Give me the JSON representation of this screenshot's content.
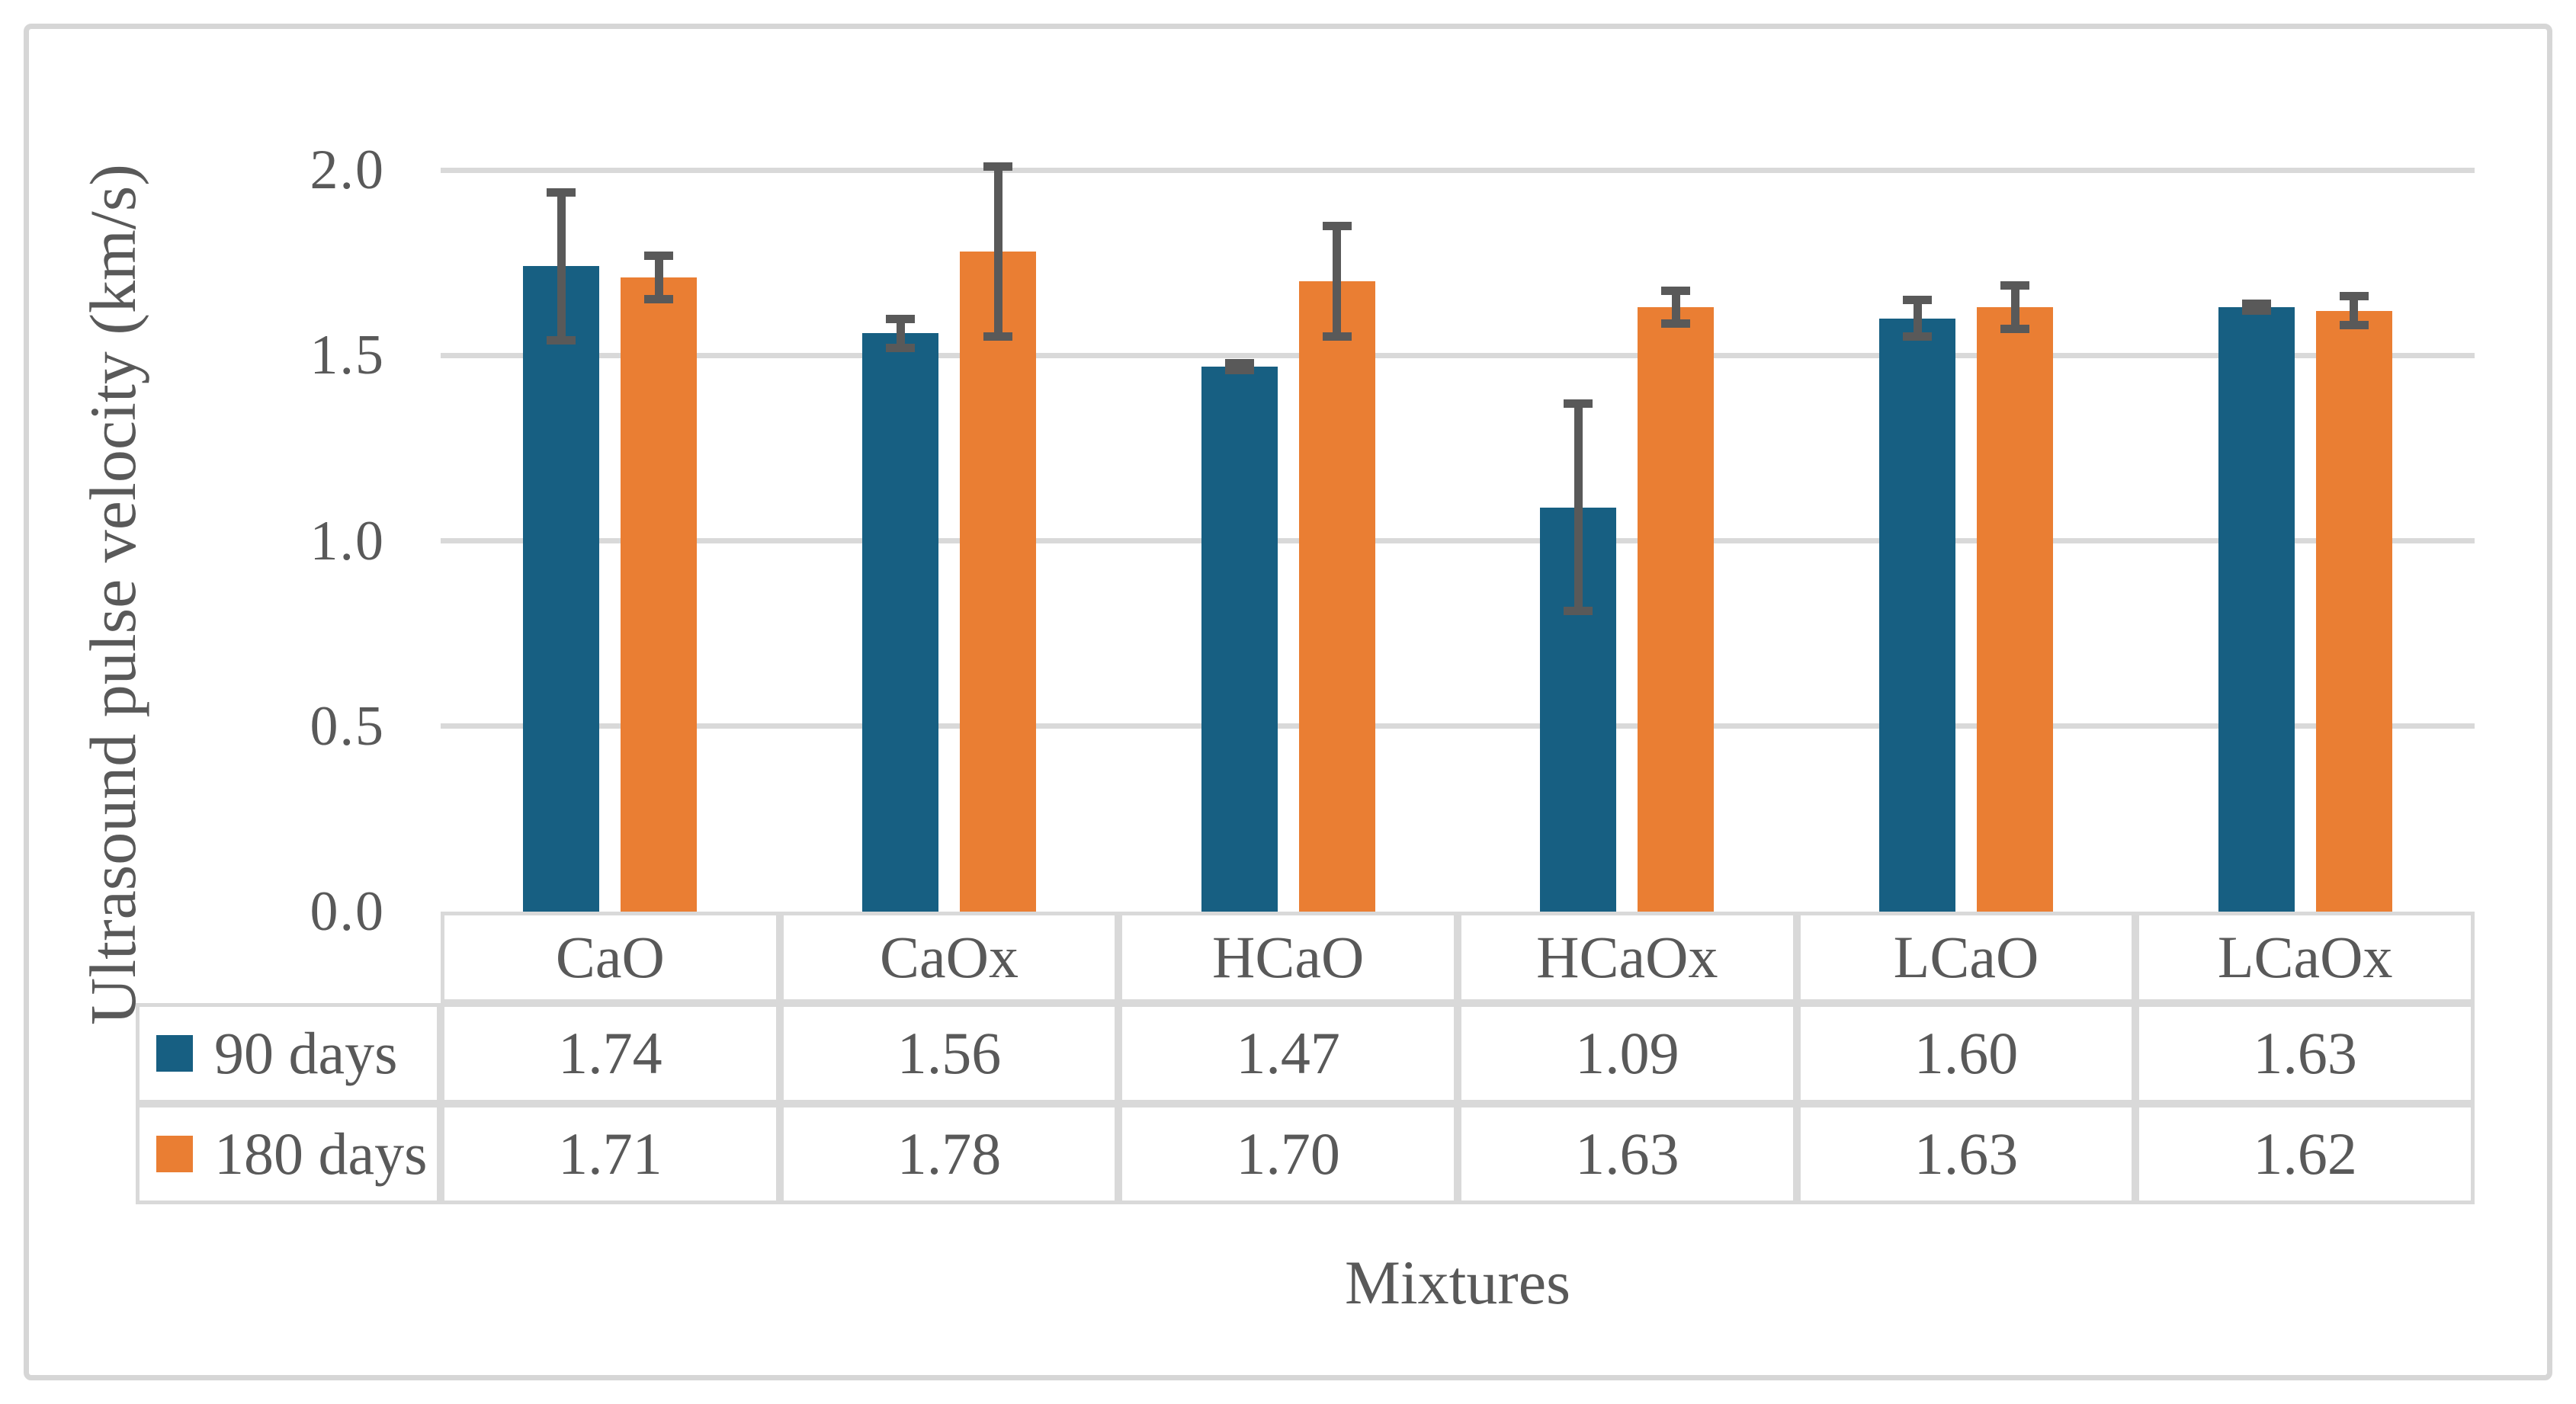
{
  "chart_data": {
    "type": "bar",
    "title": "",
    "xlabel": "Mixtures",
    "ylabel": "Ultrasound pulse velocity (km/s)",
    "categories": [
      "CaO",
      "CaOx",
      "HCaO",
      "HCaOx",
      "LCaO",
      "LCaOx"
    ],
    "series": [
      {
        "name": "90 days",
        "color": "#175F82",
        "values": [
          1.74,
          1.56,
          1.47,
          1.09,
          1.6,
          1.63
        ],
        "errors": [
          0.2,
          0.04,
          0.01,
          0.28,
          0.05,
          0.01
        ]
      },
      {
        "name": "180 days",
        "color": "#EA7E33",
        "values": [
          1.71,
          1.78,
          1.7,
          1.63,
          1.63,
          1.62
        ],
        "errors": [
          0.06,
          0.23,
          0.15,
          0.045,
          0.06,
          0.04
        ]
      }
    ],
    "table_values": [
      [
        "1.74",
        "1.56",
        "1.47",
        "1.09",
        "1.60",
        "1.63"
      ],
      [
        "1.71",
        "1.78",
        "1.70",
        "1.63",
        "1.63",
        "1.62"
      ]
    ],
    "ylim": [
      0,
      2.0
    ],
    "yticks": [
      "0.0",
      "0.5",
      "1.0",
      "1.5",
      "2.0"
    ],
    "grid": true,
    "legend_position": "table-left-column",
    "data_table_shown": true
  },
  "style": {
    "bar_blue": "#175F82",
    "bar_orange": "#EA7E33",
    "error_bar_color": "#595959",
    "gridline_color": "#d9d9d9",
    "table_border_color": "#d9d9d9",
    "text_color": "#595959",
    "outer_border_color": "#d6d6d6",
    "background": "#ffffff"
  }
}
